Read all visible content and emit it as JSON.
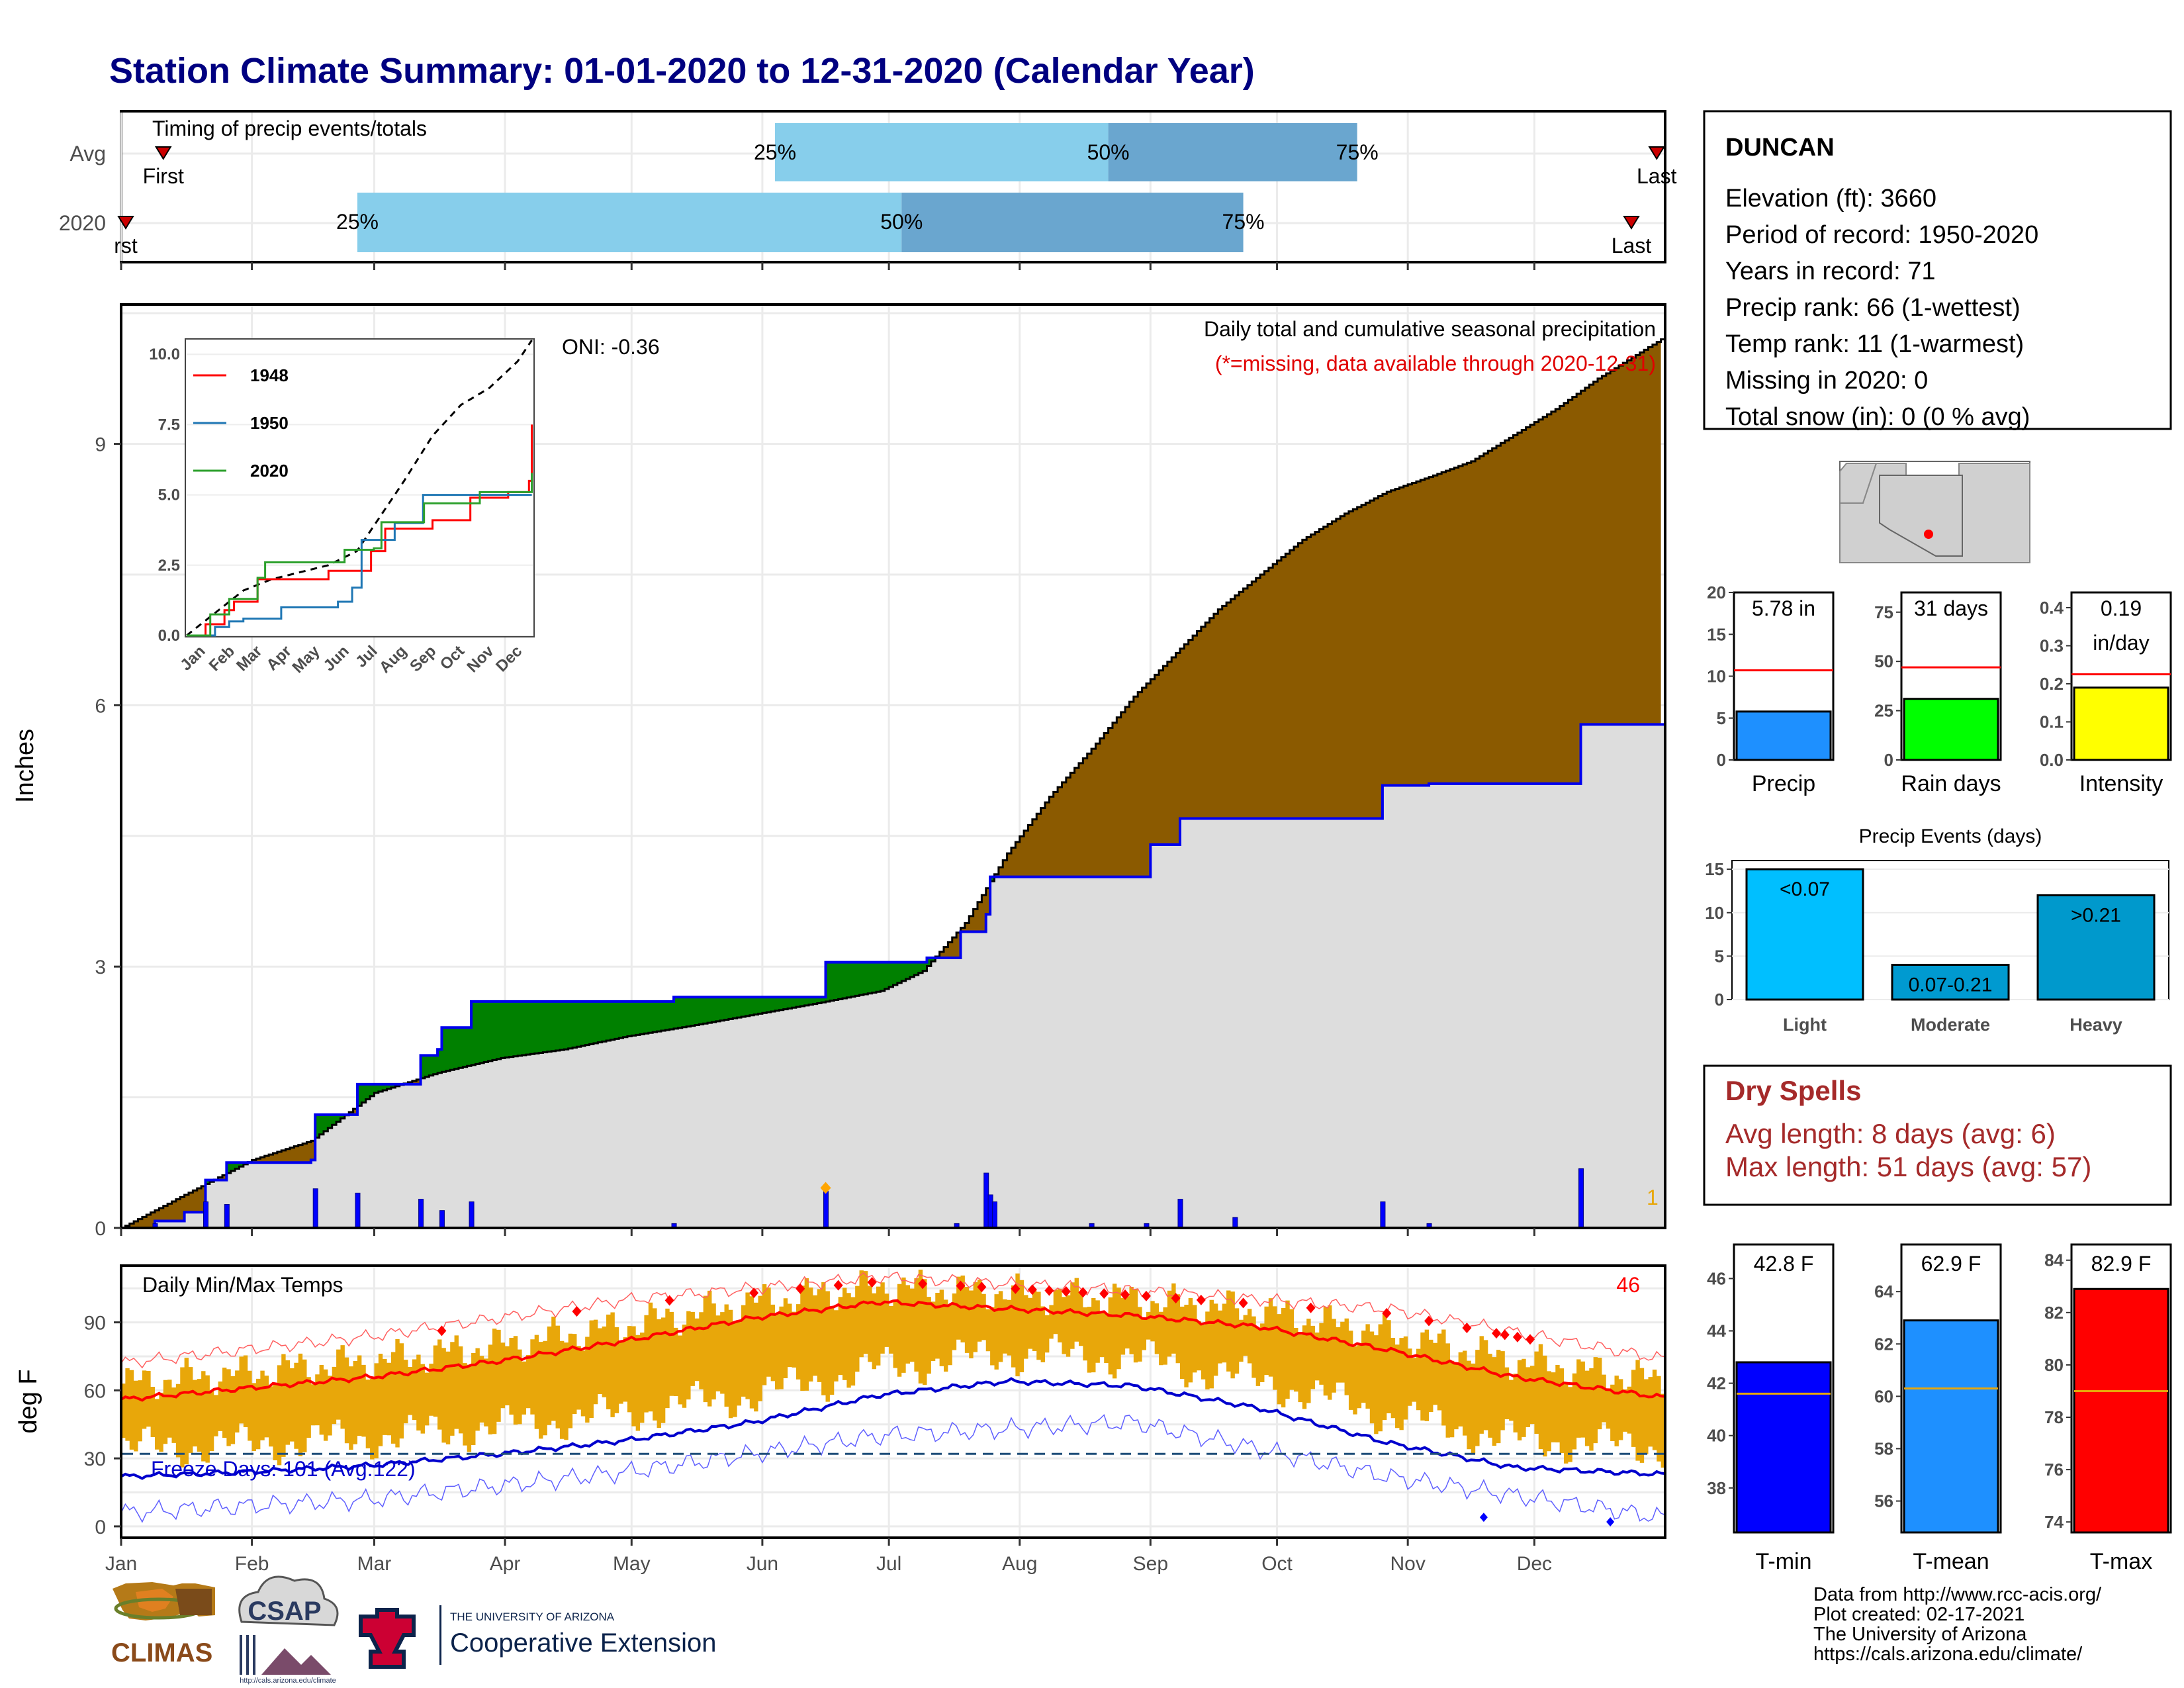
{
  "title": "Station Climate Summary: 01-01-2020 to 12-31-2020 (Calendar Year)",
  "colors": {
    "title": "#000080",
    "cum_avg": "#dddddd",
    "cum_obs": "#8b5a00",
    "cum_green": "#008000",
    "daily_bar": "#0000ff",
    "temp_bar": "#e8a70a",
    "tmax_line": "#ff0000",
    "tmin_line": "#0000cd",
    "q_light": "#87ceeb",
    "q_mid": "#6aa6cf"
  },
  "timing_panel": {
    "label": "Timing of precip events/totals",
    "rows": [
      "Avg",
      "2020"
    ],
    "avg": {
      "first_label": "First",
      "last_label": "Last",
      "p25": "25%",
      "p50": "50%",
      "p75": "75%",
      "first": 10,
      "p25_day": 155,
      "p50_day": 234,
      "p75_day": 293,
      "last": 364
    },
    "y2020": {
      "first_label": "rst",
      "last_label": "Last",
      "p25": "25%",
      "p50": "50%",
      "p75": "75%",
      "first": 0,
      "p25_day": 56,
      "p50_day": 185,
      "p75_day": 266,
      "last": 358
    }
  },
  "precip_panel": {
    "legend_title": "Daily total and cumulative seasonal precipitation",
    "note": "(*=missing, data available through 2020-12-31)",
    "ylabel": "Inches",
    "oni": "ONI: -0.36",
    "corner_count": "1",
    "yticks": [
      "0",
      "3",
      "6",
      "9"
    ]
  },
  "inset": {
    "yticks": [
      "0.0",
      "2.5",
      "5.0",
      "7.5",
      "10.0"
    ],
    "months": [
      "Jan",
      "Feb",
      "Mar",
      "Apr",
      "May",
      "Jun",
      "Jul",
      "Aug",
      "Sep",
      "Oct",
      "Nov",
      "Dec"
    ],
    "legend": [
      {
        "name": "1948",
        "color": "#ff0000"
      },
      {
        "name": "1950",
        "color": "#1f77b4"
      },
      {
        "name": "2020",
        "color": "#2ca02c"
      }
    ]
  },
  "temp_panel": {
    "label": "Daily Min/Max Temps",
    "ylabel": "deg F",
    "count": "46",
    "freeze": "Freeze Days: 101 (Avg:122)",
    "yticks": [
      "0",
      "30",
      "60",
      "90"
    ]
  },
  "x_months": [
    "Jan",
    "Feb",
    "Mar",
    "Apr",
    "May",
    "Jun",
    "Jul",
    "Aug",
    "Sep",
    "Oct",
    "Nov",
    "Dec"
  ],
  "station": {
    "name": "DUNCAN",
    "lines": [
      "Elevation (ft): 3660",
      "Period of record: 1950-2020",
      "Years in record: 71",
      "Precip rank: 66 (1-wettest)",
      "Temp rank: 11 (1-warmest)",
      "Missing in 2020: 0",
      "Total snow (in): 0 (0 % avg)"
    ]
  },
  "mini_bars": [
    {
      "label": "Precip",
      "value_text": "5.78 in",
      "value": 5.78,
      "avg": 10.7,
      "ymax": 20,
      "ticks": [
        "0",
        "5",
        "10",
        "15",
        "20"
      ],
      "color": "#1e90ff"
    },
    {
      "label": "Rain days",
      "value_text": "31 days",
      "value": 31,
      "avg": 47,
      "ymax": 85,
      "ticks": [
        "0",
        "25",
        "50",
        "75"
      ],
      "color": "#00ff00"
    },
    {
      "label": "Intensity",
      "value_text": "0.19",
      "value_text2": "in/day",
      "value": 0.19,
      "avg": 0.225,
      "ymax": 0.44,
      "ticks": [
        "0.0",
        "0.1",
        "0.2",
        "0.3",
        "0.4"
      ],
      "color": "#ffff00"
    }
  ],
  "precip_events": {
    "title": "Precip Events (days)",
    "ticks": [
      "0",
      "5",
      "10",
      "15"
    ],
    "bars": [
      {
        "category": "Light",
        "text": "<0.07",
        "value": 15,
        "color": "#00bfff"
      },
      {
        "category": "Moderate",
        "text": "0.07-0.21",
        "value": 4,
        "color": "#009ad0"
      },
      {
        "category": "Heavy",
        "text": ">0.21",
        "value": 12,
        "color": "#0099cc"
      }
    ]
  },
  "dry_spells": {
    "title": "Dry Spells",
    "avg_line": "Avg length: 8 days (avg: 6)",
    "max_line": "Max length: 51 days (avg: 57)"
  },
  "temp_bars": [
    {
      "label": "T-min",
      "value_text": "42.8 F",
      "value": 42.8,
      "avg": 41.6,
      "ymin": 36.3,
      "ymax": 47.3,
      "ticks": [
        "38",
        "40",
        "42",
        "44",
        "46"
      ],
      "color": "#0000ff"
    },
    {
      "label": "T-mean",
      "value_text": "62.9 F",
      "value": 62.9,
      "avg": 60.3,
      "ymin": 54.8,
      "ymax": 65.8,
      "ticks": [
        "56",
        "58",
        "60",
        "62",
        "64"
      ],
      "color": "#1e90ff"
    },
    {
      "label": "T-max",
      "value_text": "82.9 F",
      "value": 82.9,
      "avg": 79.0,
      "ymin": 73.6,
      "ymax": 84.6,
      "ticks": [
        "74",
        "76",
        "78",
        "80",
        "82",
        "84"
      ],
      "color": "#ff0000"
    }
  ],
  "footer": {
    "lines": [
      "Data from http://www.rcc-acis.org/",
      "Plot created: 02-17-2021",
      "The University of Arizona",
      "https://cals.arizona.edu/climate/"
    ],
    "climas": "CLIMAS",
    "csap": "CSAP",
    "csap_url": "http://cals.arizona.edu/climate",
    "ua_small": "THE UNIVERSITY OF ARIZONA",
    "ua_big": "Cooperative Extension"
  },
  "chart_data": [
    {
      "type": "area",
      "title": "Daily total and cumulative seasonal precipitation",
      "ylabel": "Inches",
      "ylim": [
        0,
        10.6
      ],
      "x_unit": "day of year",
      "cum_avg": [
        [
          0,
          0
        ],
        [
          15,
          0.38
        ],
        [
          31,
          0.78
        ],
        [
          45,
          1.0
        ],
        [
          60,
          1.55
        ],
        [
          75,
          1.78
        ],
        [
          90,
          1.95
        ],
        [
          105,
          2.05
        ],
        [
          120,
          2.2
        ],
        [
          135,
          2.32
        ],
        [
          150,
          2.45
        ],
        [
          165,
          2.58
        ],
        [
          180,
          2.72
        ],
        [
          190,
          2.95
        ],
        [
          200,
          3.5
        ],
        [
          210,
          4.3
        ],
        [
          220,
          4.95
        ],
        [
          230,
          5.5
        ],
        [
          240,
          6.1
        ],
        [
          250,
          6.6
        ],
        [
          260,
          7.1
        ],
        [
          270,
          7.5
        ],
        [
          280,
          7.9
        ],
        [
          290,
          8.2
        ],
        [
          300,
          8.45
        ],
        [
          310,
          8.62
        ],
        [
          320,
          8.8
        ],
        [
          330,
          9.1
        ],
        [
          340,
          9.4
        ],
        [
          350,
          9.75
        ],
        [
          365,
          10.2
        ]
      ],
      "cum_obs": [
        [
          0,
          0
        ],
        [
          8,
          0.08
        ],
        [
          15,
          0.18
        ],
        [
          20,
          0.55
        ],
        [
          25,
          0.75
        ],
        [
          45,
          0.78
        ],
        [
          46,
          1.3
        ],
        [
          55,
          1.3
        ],
        [
          56,
          1.65
        ],
        [
          70,
          1.65
        ],
        [
          71,
          1.98
        ],
        [
          75,
          2.05
        ],
        [
          76,
          2.3
        ],
        [
          82,
          2.3
        ],
        [
          83,
          2.6
        ],
        [
          130,
          2.6
        ],
        [
          131,
          2.65
        ],
        [
          166,
          2.65
        ],
        [
          167,
          3.05
        ],
        [
          190,
          3.05
        ],
        [
          191,
          3.1
        ],
        [
          198,
          3.1
        ],
        [
          199,
          3.4
        ],
        [
          205,
          3.6
        ],
        [
          206,
          4.03
        ],
        [
          243,
          4.03
        ],
        [
          244,
          4.4
        ],
        [
          250,
          4.4
        ],
        [
          251,
          4.7
        ],
        [
          298,
          4.7
        ],
        [
          299,
          5.08
        ],
        [
          310,
          5.1
        ],
        [
          345,
          5.1
        ],
        [
          346,
          5.78
        ],
        [
          365,
          5.78
        ]
      ],
      "daily": [
        [
          8,
          0.05
        ],
        [
          20,
          0.3
        ],
        [
          25,
          0.27
        ],
        [
          46,
          0.45
        ],
        [
          56,
          0.4
        ],
        [
          71,
          0.33
        ],
        [
          76,
          0.2
        ],
        [
          83,
          0.3
        ],
        [
          131,
          0.05
        ],
        [
          167,
          0.42
        ],
        [
          198,
          0.05
        ],
        [
          205,
          0.63
        ],
        [
          206,
          0.38
        ],
        [
          207,
          0.3
        ],
        [
          230,
          0.05
        ],
        [
          243,
          0.05
        ],
        [
          251,
          0.33
        ],
        [
          264,
          0.12
        ],
        [
          299,
          0.3
        ],
        [
          310,
          0.05
        ],
        [
          346,
          0.68
        ]
      ]
    },
    {
      "type": "line",
      "title": "Daily Min/Max Temps",
      "ylabel": "deg F",
      "ylim": [
        -5,
        115
      ],
      "x_unit": "day of year",
      "tmax_avg": [
        [
          0,
          56
        ],
        [
          30,
          61
        ],
        [
          60,
          66
        ],
        [
          90,
          73
        ],
        [
          120,
          82
        ],
        [
          150,
          92
        ],
        [
          180,
          99
        ],
        [
          210,
          96
        ],
        [
          240,
          93
        ],
        [
          270,
          88
        ],
        [
          300,
          78
        ],
        [
          330,
          66
        ],
        [
          365,
          57
        ]
      ],
      "tmin_avg": [
        [
          0,
          22
        ],
        [
          30,
          24
        ],
        [
          60,
          27
        ],
        [
          90,
          32
        ],
        [
          120,
          38
        ],
        [
          150,
          46
        ],
        [
          180,
          58
        ],
        [
          210,
          64
        ],
        [
          240,
          62
        ],
        [
          270,
          52
        ],
        [
          300,
          37
        ],
        [
          330,
          26
        ],
        [
          365,
          23
        ]
      ],
      "tmax_record": [
        [
          0,
          72
        ],
        [
          60,
          84
        ],
        [
          120,
          100
        ],
        [
          180,
          110
        ],
        [
          240,
          104
        ],
        [
          300,
          96
        ],
        [
          365,
          74
        ]
      ],
      "tmin_record": [
        [
          0,
          6
        ],
        [
          60,
          12
        ],
        [
          120,
          24
        ],
        [
          180,
          40
        ],
        [
          240,
          46
        ],
        [
          300,
          22
        ],
        [
          365,
          4
        ]
      ],
      "freeze_line": 32
    }
  ]
}
